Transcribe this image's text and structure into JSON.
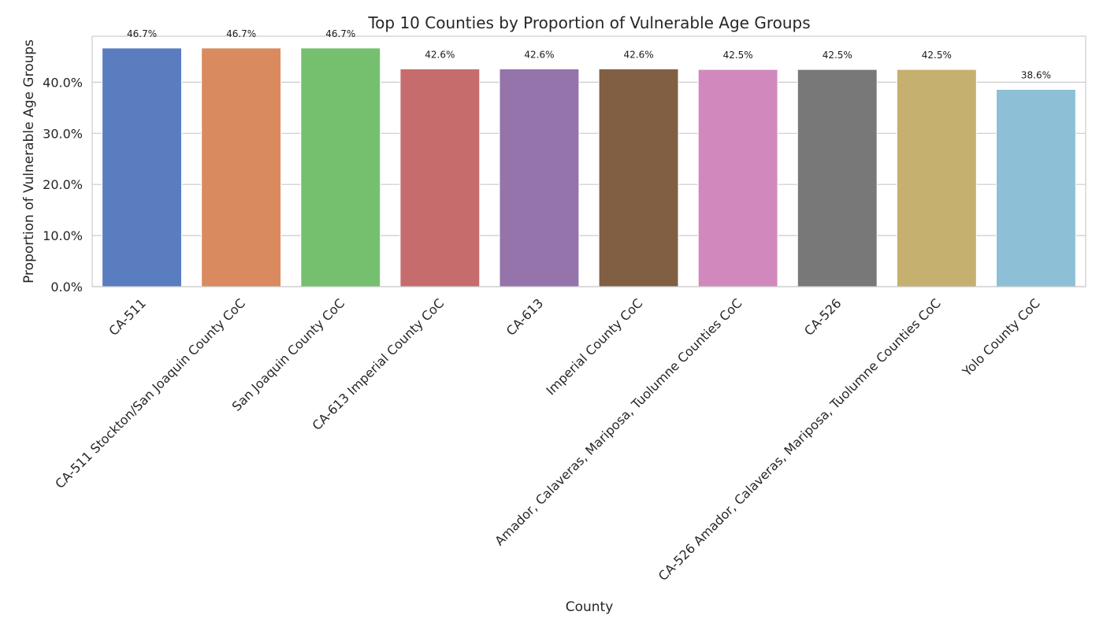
{
  "chart_data": {
    "type": "bar",
    "title": "Top 10 Counties by Proportion of Vulnerable Age Groups",
    "xlabel": "County",
    "ylabel": "Proportion of Vulnerable Age Groups",
    "categories": [
      "CA-511",
      "CA-511 Stockton/San Joaquin County CoC",
      "San Joaquin County CoC",
      "CA-613 Imperial County CoC",
      "CA-613",
      "Imperial County CoC",
      "Amador, Calaveras, Mariposa, Tuolumne Counties CoC",
      "CA-526",
      "CA-526 Amador, Calaveras, Mariposa, Tuolumne Counties CoC",
      "Yolo County CoC"
    ],
    "values": [
      46.7,
      46.7,
      46.7,
      42.6,
      42.6,
      42.6,
      42.5,
      42.5,
      42.5,
      38.6
    ],
    "data_labels": [
      "46.7%",
      "46.7%",
      "46.7%",
      "42.6%",
      "42.6%",
      "42.6%",
      "42.5%",
      "42.5%",
      "42.5%",
      "38.6%"
    ],
    "yticks": [
      0,
      10,
      20,
      30,
      40
    ],
    "ytick_labels": [
      "0.0%",
      "10.0%",
      "20.0%",
      "30.0%",
      "40.0%"
    ],
    "ylim": [
      0,
      49
    ],
    "grid": "horizontal",
    "colors": [
      "#5a7dc0",
      "#d98a5e",
      "#74c06e",
      "#c66c6c",
      "#9474ab",
      "#805f43",
      "#d189bd",
      "#787878",
      "#c6b06f",
      "#8dc0d6"
    ]
  }
}
